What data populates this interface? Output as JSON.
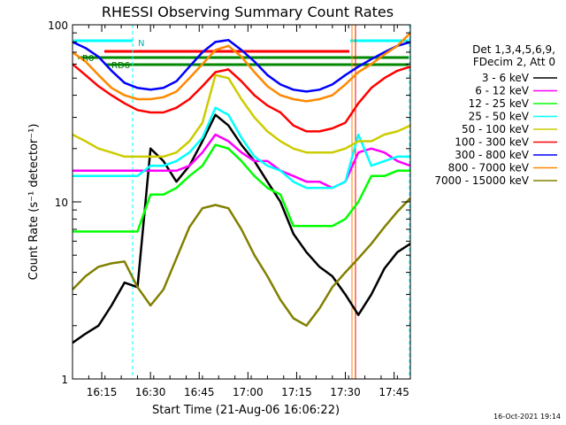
{
  "chart_data": {
    "type": "line",
    "title": "RHESSI Observing Summary Count Rates",
    "xlabel": "Start Time (21-Aug-06 16:06:22)",
    "ylabel": "Count Rate (s⁻¹ detector⁻¹)",
    "yscale": "log",
    "ylim": [
      1,
      100
    ],
    "xlim_minutes": [
      0,
      104
    ],
    "x_tick_labels": [
      "16:15",
      "16:30",
      "16:45",
      "17:00",
      "17:15",
      "17:30",
      "17:45"
    ],
    "y_tick_labels": [
      "1",
      "10",
      "100"
    ],
    "legend_header": [
      "Det 1,3,4,5,6,9,",
      "FDecim 2, Att 0"
    ],
    "legend_position": "right",
    "timestamp": "16-Oct-2021 19:14",
    "annotations": {
      "n_marker": "N",
      "r0": "R0",
      "rd6": "RD6"
    },
    "series": [
      {
        "name": "3 - 6 keV",
        "color": "#000000",
        "x": [
          0,
          4,
          8,
          12,
          16,
          20,
          24,
          28,
          32,
          36,
          40,
          44,
          48,
          52,
          56,
          60,
          64,
          68,
          72,
          76,
          80,
          84,
          88,
          92,
          96,
          100,
          104
        ],
        "y": [
          1.6,
          1.8,
          2.0,
          2.6,
          3.5,
          3.3,
          20,
          17,
          13,
          16,
          22,
          31,
          27,
          21,
          17,
          13,
          10,
          6.6,
          5.2,
          4.3,
          3.8,
          3.0,
          2.3,
          3.0,
          4.2,
          5.2,
          5.8
        ]
      },
      {
        "name": "6 - 12 keV",
        "color": "#ff00ff",
        "x": [
          0,
          4,
          8,
          12,
          16,
          20,
          24,
          28,
          32,
          36,
          40,
          44,
          48,
          52,
          56,
          60,
          64,
          68,
          72,
          76,
          80,
          84,
          88,
          92,
          96,
          100,
          104
        ],
        "y": [
          15,
          15,
          15,
          15,
          15,
          15,
          15,
          15,
          15,
          16,
          19,
          24,
          22,
          19,
          17,
          17,
          15,
          14,
          13,
          13,
          12,
          13,
          19,
          20,
          19,
          17,
          16
        ]
      },
      {
        "name": "12 - 25 keV",
        "color": "#00ff00",
        "x": [
          0,
          4,
          8,
          12,
          16,
          20,
          24,
          28,
          32,
          36,
          40,
          44,
          48,
          52,
          56,
          60,
          64,
          68,
          72,
          76,
          80,
          84,
          88,
          92,
          96,
          100,
          104
        ],
        "y": [
          6.8,
          6.8,
          6.8,
          6.8,
          6.8,
          6.8,
          11,
          11,
          12,
          14,
          16,
          21,
          20,
          17,
          14,
          12,
          11,
          7.3,
          7.3,
          7.3,
          7.3,
          8,
          10,
          14,
          14,
          15,
          15
        ]
      },
      {
        "name": "25 - 50 keV",
        "color": "#00ffff",
        "x": [
          0,
          4,
          8,
          12,
          16,
          20,
          24,
          28,
          32,
          36,
          40,
          44,
          48,
          52,
          56,
          60,
          64,
          68,
          72,
          76,
          80,
          84,
          88,
          92,
          96,
          100,
          104
        ],
        "y": [
          14,
          14,
          14,
          14,
          14,
          14,
          16,
          16,
          17,
          19,
          23,
          34,
          31,
          23,
          18,
          16,
          15,
          13,
          12,
          12,
          12,
          13,
          24,
          16,
          17,
          18,
          18
        ]
      },
      {
        "name": "50 - 100 keV",
        "color": "#cccc00",
        "x": [
          0,
          4,
          8,
          12,
          16,
          20,
          24,
          28,
          32,
          36,
          40,
          44,
          48,
          52,
          56,
          60,
          64,
          68,
          72,
          76,
          80,
          84,
          88,
          92,
          96,
          100,
          104
        ],
        "y": [
          24,
          22,
          20,
          19,
          18,
          18,
          18,
          18,
          19,
          22,
          28,
          52,
          50,
          38,
          30,
          25,
          22,
          20,
          19,
          19,
          19,
          20,
          22,
          22,
          24,
          25,
          27
        ]
      },
      {
        "name": "100 - 300 keV",
        "color": "#ff0000",
        "x": [
          0,
          4,
          8,
          12,
          16,
          20,
          24,
          28,
          32,
          36,
          40,
          44,
          48,
          52,
          56,
          60,
          64,
          68,
          72,
          76,
          80,
          84,
          88,
          92,
          96,
          100,
          104
        ],
        "y": [
          60,
          52,
          45,
          40,
          36,
          33,
          32,
          32,
          34,
          38,
          45,
          54,
          56,
          48,
          40,
          35,
          32,
          27,
          25,
          25,
          26,
          28,
          36,
          44,
          50,
          55,
          58
        ]
      },
      {
        "name": "300 - 800 keV",
        "color": "#0000ff",
        "x": [
          0,
          4,
          8,
          12,
          16,
          20,
          24,
          28,
          32,
          36,
          40,
          44,
          48,
          52,
          56,
          60,
          64,
          68,
          72,
          76,
          80,
          84,
          88,
          92,
          96,
          100,
          104
        ],
        "y": [
          80,
          74,
          66,
          55,
          47,
          44,
          43,
          44,
          48,
          58,
          70,
          80,
          82,
          72,
          62,
          52,
          46,
          43,
          42,
          43,
          46,
          52,
          58,
          64,
          70,
          76,
          80
        ]
      },
      {
        "name": "800 - 7000 keV",
        "color": "#ff8800",
        "x": [
          0,
          4,
          8,
          12,
          16,
          20,
          24,
          28,
          32,
          36,
          40,
          44,
          48,
          52,
          56,
          60,
          64,
          68,
          72,
          76,
          80,
          84,
          88,
          92,
          96,
          100,
          104
        ],
        "y": [
          70,
          62,
          52,
          44,
          40,
          38,
          38,
          39,
          42,
          50,
          60,
          72,
          76,
          66,
          54,
          45,
          40,
          38,
          37,
          38,
          40,
          46,
          54,
          60,
          68,
          76,
          90
        ]
      },
      {
        "name": "7000 - 15000 keV",
        "color": "#808000",
        "x": [
          0,
          4,
          8,
          12,
          16,
          20,
          24,
          28,
          32,
          36,
          40,
          44,
          48,
          52,
          56,
          60,
          64,
          68,
          72,
          76,
          80,
          84,
          88,
          92,
          96,
          100,
          104
        ],
        "y": [
          3.2,
          3.8,
          4.3,
          4.5,
          4.6,
          3.3,
          2.6,
          3.2,
          4.8,
          7.2,
          9.2,
          9.6,
          9.2,
          7.0,
          5.0,
          3.8,
          2.8,
          2.2,
          2.0,
          2.5,
          3.3,
          4.0,
          4.8,
          5.8,
          7.2,
          8.8,
          10.5
        ]
      }
    ]
  }
}
